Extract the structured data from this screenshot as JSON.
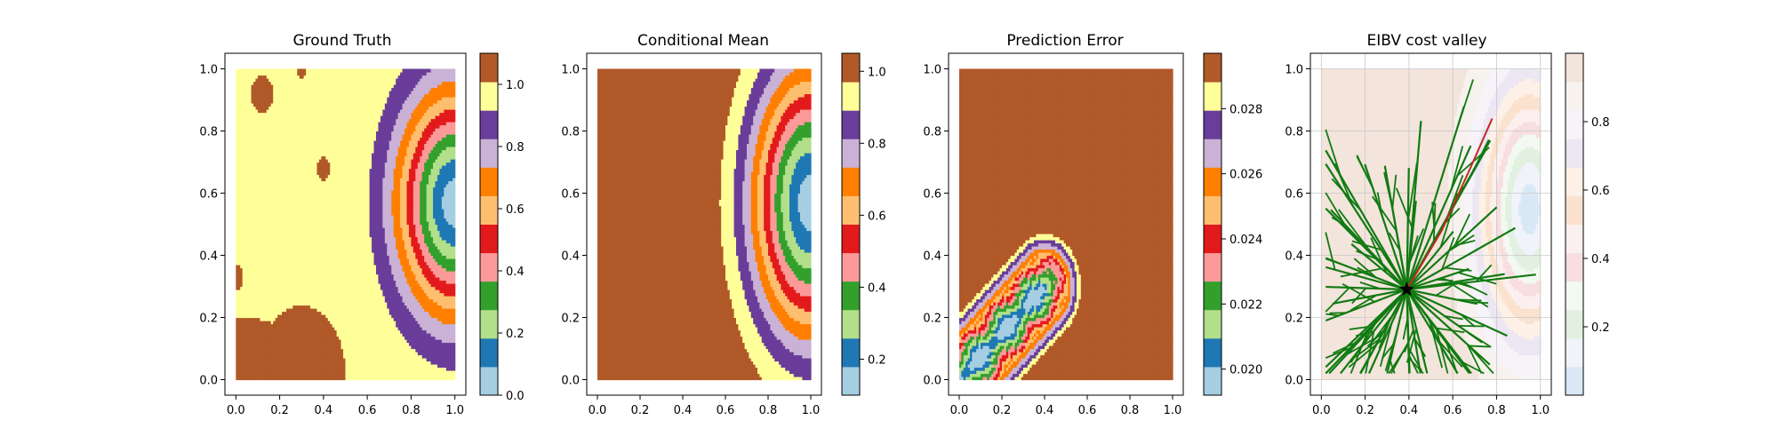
{
  "palette": [
    "#a6cee3",
    "#1f78b4",
    "#b2df8a",
    "#33a02c",
    "#fb9a99",
    "#e31a1c",
    "#fdbf6f",
    "#ff7f00",
    "#cab2d6",
    "#6a3d9a",
    "#ffff99",
    "#b15928"
  ],
  "cost_palette": [
    "#dae8f5",
    "#f0f4fa",
    "#e2f0e0",
    "#f2f9f0",
    "#f8dede",
    "#fcefef",
    "#fbe2cf",
    "#fdf1e7",
    "#ece7f3",
    "#f6f3f9",
    "#f7f2ee",
    "#f3e4dc"
  ],
  "chart_data": [
    {
      "type": "heatmap",
      "title": "Ground Truth",
      "xlim": [
        0,
        1
      ],
      "ylim": [
        0,
        1
      ],
      "x_ticks": [
        "0.0",
        "0.2",
        "0.4",
        "0.6",
        "0.8",
        "1.0"
      ],
      "y_ticks": [
        "0.0",
        "0.2",
        "0.4",
        "0.6",
        "0.8",
        "1.0"
      ],
      "colorbar": {
        "vmin": 0,
        "vmax": 1.1,
        "levels": 12,
        "ticks": [
          "0.0",
          "0.2",
          "0.4",
          "0.6",
          "0.8",
          "1.0"
        ]
      },
      "field": {
        "center": [
          1.0,
          0.57
        ],
        "sx": 0.38,
        "sy": 0.52,
        "peak_level": 11
      }
    },
    {
      "type": "heatmap",
      "title": "Conditional Mean",
      "xlim": [
        0,
        1
      ],
      "ylim": [
        0,
        1
      ],
      "x_ticks": [
        "0.0",
        "0.2",
        "0.4",
        "0.6",
        "0.8",
        "1.0"
      ],
      "y_ticks": [
        "0.0",
        "0.2",
        "0.4",
        "0.6",
        "0.8",
        "1.0"
      ],
      "colorbar": {
        "vmin": 0.1,
        "vmax": 1.05,
        "levels": 12,
        "ticks": [
          "0.2",
          "0.4",
          "0.6",
          "0.8",
          "1.0"
        ]
      },
      "field": {
        "center": [
          1.0,
          0.57
        ],
        "sx": 0.42,
        "sy": 0.66,
        "peak_level": 11
      }
    },
    {
      "type": "heatmap",
      "title": "Prediction Error",
      "xlim": [
        0,
        1
      ],
      "ylim": [
        0,
        1
      ],
      "x_ticks": [
        "0.0",
        "0.2",
        "0.4",
        "0.6",
        "0.8",
        "1.0"
      ],
      "y_ticks": [
        "0.0",
        "0.2",
        "0.4",
        "0.6",
        "0.8",
        "1.0"
      ],
      "colorbar": {
        "vmin": 0.0192,
        "vmax": 0.0297,
        "levels": 12,
        "ticks": [
          "0.020",
          "0.022",
          "0.024",
          "0.026",
          "0.028"
        ]
      },
      "field": {
        "trajectory_start": [
          0.0,
          0.0
        ],
        "trajectory_end": [
          0.4,
          0.3
        ],
        "width": 0.17
      }
    },
    {
      "type": "heatmap",
      "title": "EIBV cost valley",
      "xlim": [
        0,
        1
      ],
      "ylim": [
        0,
        1
      ],
      "x_ticks": [
        "0.0",
        "0.2",
        "0.4",
        "0.6",
        "0.8",
        "1.0"
      ],
      "y_ticks": [
        "0.0",
        "0.2",
        "0.4",
        "0.6",
        "0.8",
        "1.0"
      ],
      "colorbar": {
        "vmin": 0.0,
        "vmax": 1.0,
        "levels": 12,
        "ticks": [
          "0.2",
          "0.4",
          "0.6",
          "0.8"
        ]
      },
      "grid": true,
      "current_location": [
        0.39,
        0.29
      ],
      "tree_color": "#117a11",
      "best_path_color": "#c0281c"
    }
  ]
}
